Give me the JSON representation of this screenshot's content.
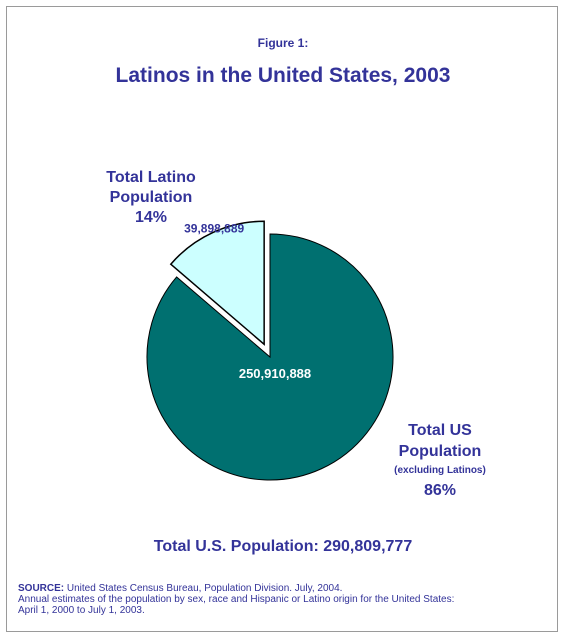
{
  "figure_label": "Figure 1:",
  "title": "Latinos in the United States, 2003",
  "colors": {
    "text": "#333399",
    "us_slice": "#007070",
    "latino_slice": "#ccffff"
  },
  "chart_data": {
    "type": "pie",
    "title": "Latinos in the United States, 2003",
    "slices": [
      {
        "name": "Total Latino Population",
        "value": 39898889,
        "value_label": "39,898,889",
        "percent_label": "14%",
        "exploded": true
      },
      {
        "name": "Total US Population",
        "note": "(excluding Latinos)",
        "value": 250910888,
        "value_label": "250,910,888",
        "percent_label": "86%",
        "exploded": false
      }
    ],
    "total_label": "Total U.S. Population: 290,809,777"
  },
  "labels": {
    "latino_line1": "Total Latino",
    "latino_line2": "Population",
    "latino_pct": "14%",
    "us_line1": "Total US",
    "us_line2": "Population",
    "us_note": "(excluding Latinos)",
    "us_pct": "86%"
  },
  "source": {
    "prefix": "SOURCE:",
    "line1": " United States Census Bureau, Population Division. July, 2004.",
    "line2": "Annual estimates of the population by sex, race and Hispanic or Latino origin for the United States:",
    "line3": "April 1, 2000 to July 1, 2003."
  }
}
